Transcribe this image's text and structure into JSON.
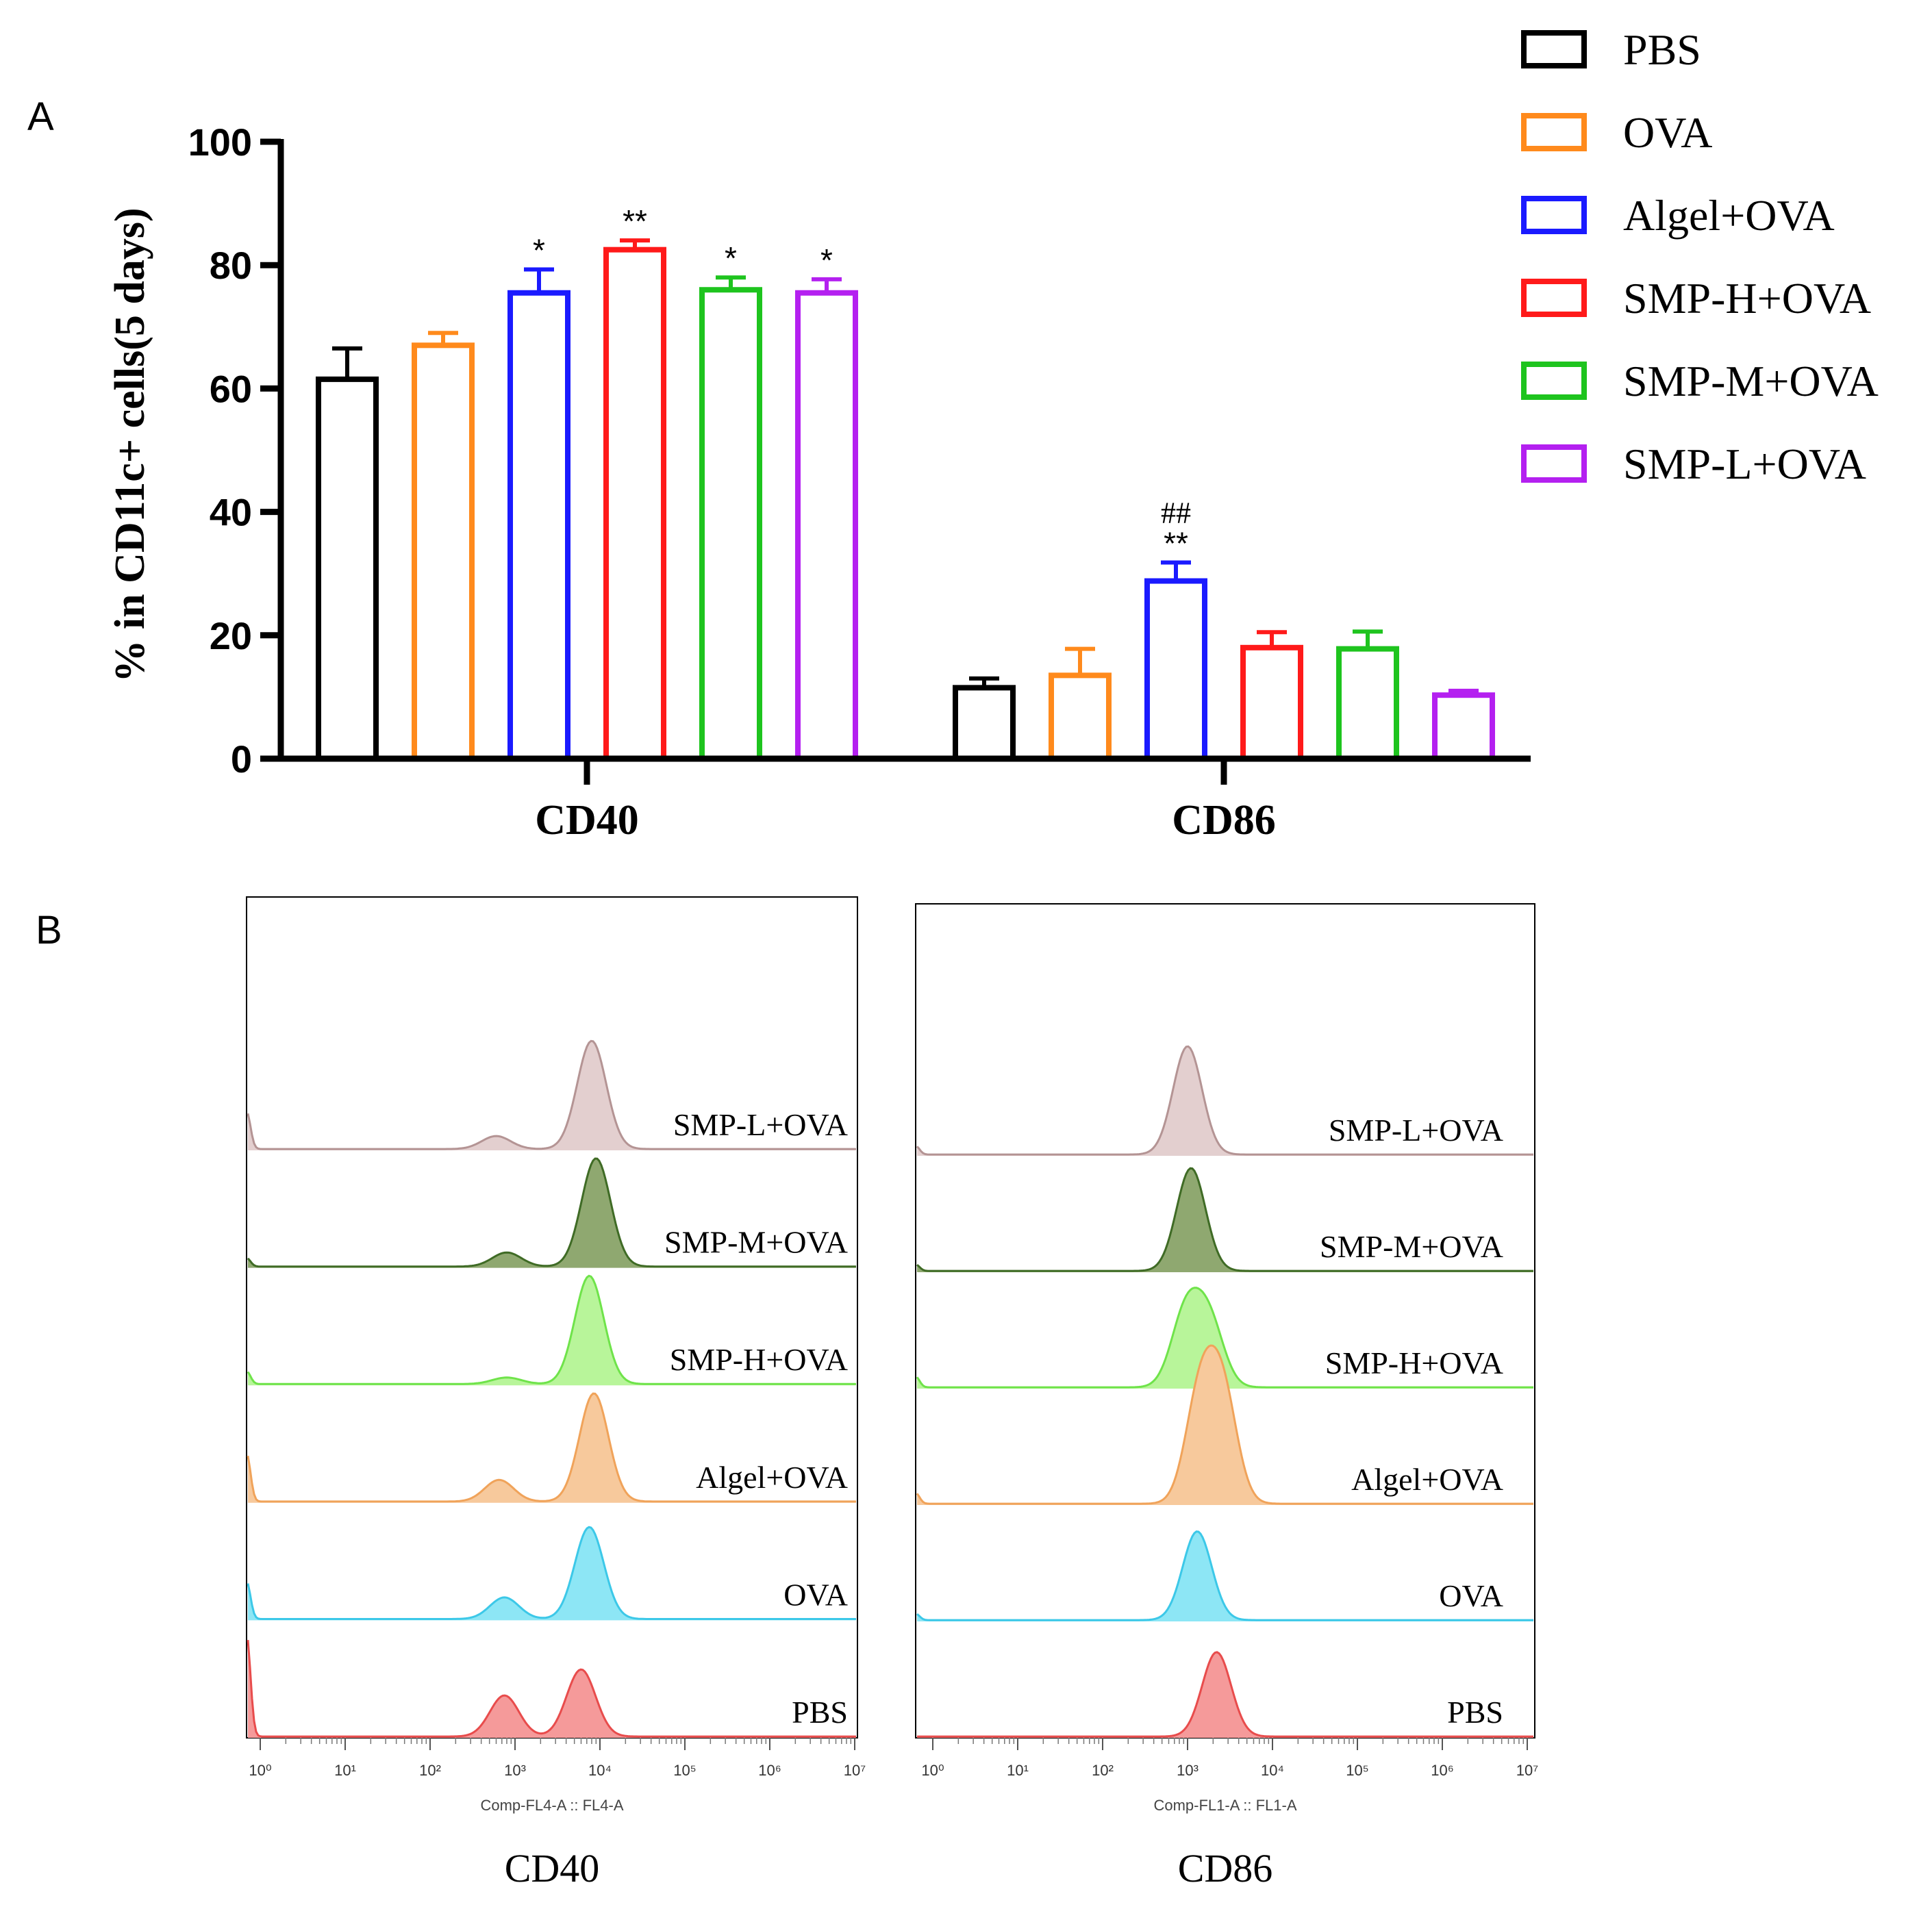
{
  "panel_labels": [
    "A",
    "B"
  ],
  "colors": {
    "PBS": "#000000",
    "OVA": "#ff8a1c",
    "Algel+OVA": "#1a1aff",
    "SMP-H+OVA": "#ff1a1a",
    "SMP-M+OVA": "#1ec41e",
    "SMP-L+OVA": "#b420f0"
  },
  "histogram_colors": {
    "SMP-L+OVA": {
      "fill": "#e3cfcf",
      "line": "#b49494"
    },
    "SMP-M+OVA": {
      "fill": "#8fa870",
      "line": "#3f6b25"
    },
    "SMP-H+OVA": {
      "fill": "#b8f59a",
      "line": "#6fe34a"
    },
    "Algel+OVA": {
      "fill": "#f7c99c",
      "line": "#f0a35a"
    },
    "OVA": {
      "fill": "#8de6f5",
      "line": "#3cc8e8"
    },
    "PBS": {
      "fill": "#f59a9a",
      "line": "#e84c4c"
    }
  },
  "chart_data": [
    {
      "type": "bar",
      "panel": "A",
      "ylabel": "% in CD11c+ cells(5 days)",
      "ylim": [
        0,
        100
      ],
      "yticks": [
        0,
        20,
        40,
        60,
        80,
        100
      ],
      "categories": [
        "CD40",
        "CD86"
      ],
      "legend": [
        "PBS",
        "OVA",
        "Algel+OVA",
        "SMP-H+OVA",
        "SMP-M+OVA",
        "SMP-L+OVA"
      ],
      "legend_position": "top-right",
      "grid": false,
      "series": [
        {
          "name": "PBS",
          "values": [
            61.5,
            11.5
          ],
          "errors": [
            5.0,
            1.5
          ],
          "annotations": [
            "",
            ""
          ]
        },
        {
          "name": "OVA",
          "values": [
            67.0,
            13.5
          ],
          "errors": [
            2.0,
            4.3
          ],
          "annotations": [
            "",
            ""
          ]
        },
        {
          "name": "Algel+OVA",
          "values": [
            75.5,
            28.8
          ],
          "errors": [
            3.8,
            3.0
          ],
          "annotations": [
            "*",
            "**"
          ],
          "annotations_top": [
            "",
            "##"
          ]
        },
        {
          "name": "SMP-H+OVA",
          "values": [
            82.5,
            18.0
          ],
          "errors": [
            1.5,
            2.5
          ],
          "annotations": [
            "**",
            ""
          ]
        },
        {
          "name": "SMP-M+OVA",
          "values": [
            76.0,
            17.8
          ],
          "errors": [
            2.0,
            2.8
          ],
          "annotations": [
            "*",
            ""
          ]
        },
        {
          "name": "SMP-L+OVA",
          "values": [
            75.5,
            10.3
          ],
          "errors": [
            2.2,
            0.7
          ],
          "annotations": [
            "*",
            ""
          ]
        }
      ]
    },
    {
      "type": "area",
      "panel": "B",
      "marker": "CD40",
      "axis_caption": "Comp-FL4-A :: FL4-A",
      "x_scale": "log",
      "xticks": [
        "10⁰",
        "10¹",
        "10²",
        "10³",
        "10⁴",
        "10⁵",
        "10⁶",
        "10⁷"
      ],
      "tracks": [
        {
          "name": "SMP-L+OVA",
          "peaks": [
            {
              "x": 8000,
              "h": 1.0
            },
            {
              "x": 600,
              "h": 0.12
            }
          ],
          "zero_spike": 0.35
        },
        {
          "name": "SMP-M+OVA",
          "peaks": [
            {
              "x": 9000,
              "h": 1.0
            },
            {
              "x": 800,
              "h": 0.13
            }
          ],
          "zero_spike": 0.08
        },
        {
          "name": "SMP-H+OVA",
          "peaks": [
            {
              "x": 7500,
              "h": 1.0
            },
            {
              "x": 800,
              "h": 0.06
            }
          ],
          "zero_spike": 0.12
        },
        {
          "name": "Algel+OVA",
          "peaks": [
            {
              "x": 8500,
              "h": 1.0
            },
            {
              "x": 650,
              "h": 0.2
            }
          ],
          "zero_spike": 0.45
        },
        {
          "name": "OVA",
          "peaks": [
            {
              "x": 7500,
              "h": 0.85
            },
            {
              "x": 750,
              "h": 0.2
            }
          ],
          "zero_spike": 0.35
        },
        {
          "name": "PBS",
          "peaks": [
            {
              "x": 6000,
              "h": 0.62
            },
            {
              "x": 750,
              "h": 0.38
            }
          ],
          "zero_spike": 0.95
        }
      ]
    },
    {
      "type": "area",
      "panel": "B",
      "marker": "CD86",
      "axis_caption": "Comp-FL1-A :: FL1-A",
      "x_scale": "log",
      "xticks": [
        "10⁰",
        "10¹",
        "10²",
        "10³",
        "10⁴",
        "10⁵",
        "10⁶",
        "10⁷"
      ],
      "tracks": [
        {
          "name": "SMP-L+OVA",
          "peaks": [
            {
              "x": 1000,
              "h": 1.0
            }
          ],
          "zero_spike": 0.08
        },
        {
          "name": "SMP-M+OVA",
          "peaks": [
            {
              "x": 1100,
              "h": 0.95
            }
          ],
          "zero_spike": 0.06
        },
        {
          "name": "SMP-H+OVA",
          "peaks": [
            {
              "x": 950,
              "h": 0.68
            },
            {
              "x": 1800,
              "h": 0.6
            }
          ],
          "zero_spike": 0.1
        },
        {
          "name": "Algel+OVA",
          "peaks": [
            {
              "x": 1400,
              "h": 1.0
            },
            {
              "x": 2600,
              "h": 1.0
            }
          ],
          "zero_spike": 0.1
        },
        {
          "name": "OVA",
          "peaks": [
            {
              "x": 1300,
              "h": 0.82
            }
          ],
          "zero_spike": 0.06
        },
        {
          "name": "PBS",
          "peaks": [
            {
              "x": 2200,
              "h": 0.78
            }
          ],
          "zero_spike": 0.0
        }
      ]
    }
  ]
}
